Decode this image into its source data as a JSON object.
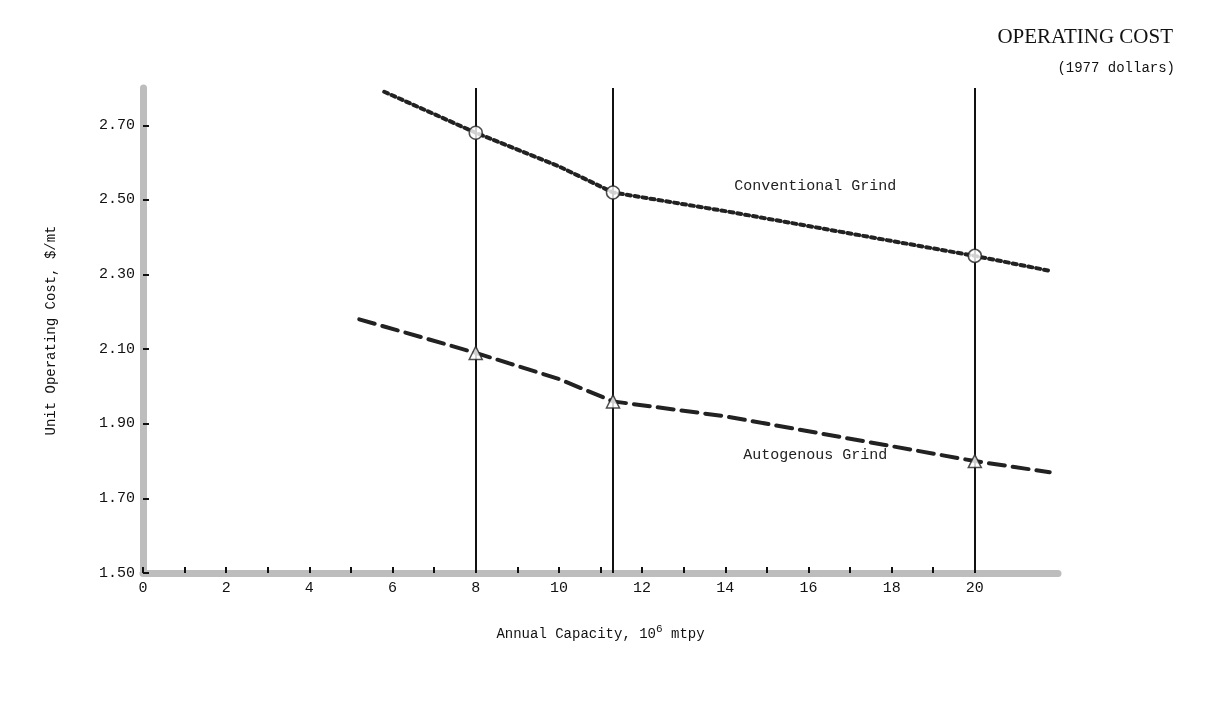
{
  "chart_data": {
    "type": "line",
    "title": "OPERATING COST",
    "subtitle": "(1977 dollars)",
    "xlabel": "Annual Capacity, 10$^{6}$ mtpy",
    "ylabel": "Unit Operating Cost, $/mt",
    "xlim": [
      0,
      22
    ],
    "ylim": [
      1.5,
      2.8
    ],
    "xticks": [
      0,
      {
        "value": 1,
        "label": null
      },
      2,
      {
        "value": 3,
        "label": null
      },
      4,
      {
        "value": 5,
        "label": null
      },
      6,
      {
        "value": 7,
        "label": null
      },
      8,
      {
        "value": 9,
        "label": null
      },
      10,
      {
        "value": 11,
        "label": null
      },
      12,
      {
        "value": 13,
        "label": null
      },
      14,
      {
        "value": 15,
        "label": null
      },
      16,
      {
        "value": 17,
        "label": null
      },
      18,
      {
        "value": 19,
        "label": null
      },
      20
    ],
    "yticks": [
      {
        "value": 1.5,
        "label": "1.50"
      },
      {
        "value": 1.7,
        "label": "1.70"
      },
      {
        "value": 1.9,
        "label": "1.90"
      },
      {
        "value": 2.1,
        "label": "2.10"
      },
      {
        "value": 2.3,
        "label": "2.30"
      },
      {
        "value": 2.5,
        "label": "2.50"
      },
      {
        "value": 2.7,
        "label": "2.70"
      }
    ],
    "grid": false,
    "legend": false,
    "ref_lines": [
      {
        "axis": "x",
        "value": 8,
        "color": "#111111"
      },
      {
        "axis": "x",
        "value": 11.3,
        "color": "#111111"
      },
      {
        "axis": "x",
        "value": 20,
        "color": "#111111"
      }
    ],
    "series": [
      {
        "name": "Conventional Grind",
        "line_style": "dotted",
        "marker": "none",
        "color": "#222222",
        "x": [
          5.8,
          8,
          10,
          11.3,
          14,
          16,
          17,
          20,
          21.8
        ],
        "values": [
          2.79,
          2.68,
          2.59,
          2.52,
          2.47,
          2.43,
          2.41,
          2.35,
          2.31
        ]
      },
      {
        "name": "Autogenous Grind",
        "line_style": "dashed",
        "marker": "none",
        "color": "#222222",
        "x": [
          5.2,
          8,
          10,
          11.3,
          14,
          16,
          17,
          20,
          21.8
        ],
        "values": [
          2.18,
          2.09,
          2.02,
          1.96,
          1.92,
          1.88,
          1.86,
          1.8,
          1.77
        ]
      },
      {
        "type": "scatter",
        "marker": "circle",
        "color": "#222222",
        "x": [
          8,
          11.3,
          20
        ],
        "values": [
          2.68,
          2.52,
          2.35
        ]
      },
      {
        "type": "scatter",
        "marker": "triangle",
        "color": "#222222",
        "x": [
          8,
          11.3,
          20
        ],
        "values": [
          2.09,
          1.96,
          1.8
        ]
      }
    ]
  }
}
